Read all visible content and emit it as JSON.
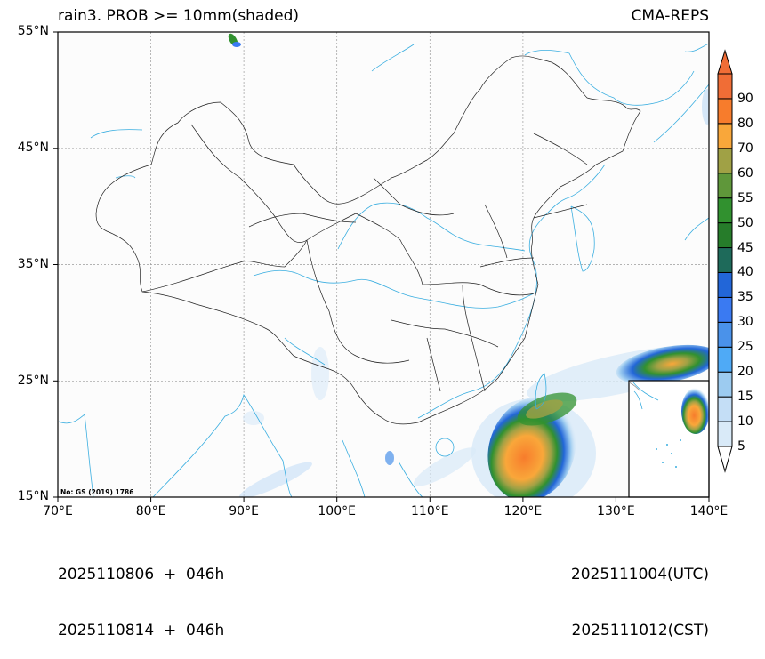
{
  "header": {
    "title_left": "rain3. PROB >= 10mm(shaded)",
    "title_right": "CMA-REPS"
  },
  "map": {
    "projection": "PlateCarree",
    "extent": {
      "lon_min": 70,
      "lon_max": 140,
      "lat_min": 15,
      "lat_max": 55
    },
    "gridlines": true,
    "review_number": "No: GS (2019) 1786",
    "x_ticks": [
      "70°E",
      "80°E",
      "90°E",
      "100°E",
      "110°E",
      "120°E",
      "130°E",
      "140°E"
    ],
    "y_ticks": [
      "55°N",
      "45°N",
      "35°N",
      "25°N",
      "15°N"
    ],
    "inset": {
      "description": "South China Sea inset map",
      "lon_range": "approx 131–140°E frame",
      "lat_range": "15–25°N frame"
    },
    "colors": {
      "boundary": "#222222",
      "coast_river": "#3aaee0",
      "grid": "#9a9a9a",
      "background": "#fcfcfc"
    }
  },
  "colorbar": {
    "levels": [
      "5",
      "10",
      "15",
      "20",
      "25",
      "30",
      "35",
      "40",
      "45",
      "50",
      "55",
      "60",
      "70",
      "80",
      "90"
    ],
    "colors": [
      "#d9eaf8",
      "#c4def6",
      "#9ccbf0",
      "#4faaf6",
      "#4a92ea",
      "#3a7af2",
      "#2266d8",
      "#1e6a5a",
      "#267c2a",
      "#31912f",
      "#5f973a",
      "#a0a145",
      "#f9a73a",
      "#f77c2c",
      "#f06d36"
    ],
    "extend": "both",
    "over_color": "#f06d36",
    "under_color": "#ffffff"
  },
  "footer": {
    "init_utc": "2025110806  +  046h",
    "init_cst": "2025110814  +  046h",
    "valid_utc": "2025111004(UTC)",
    "valid_cst": "2025111012(CST)"
  }
}
